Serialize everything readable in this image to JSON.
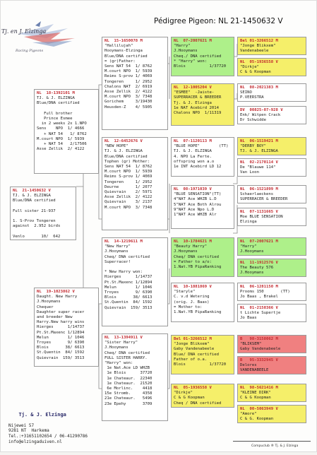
{
  "header": {
    "logo_text": "Tj. en J. Elzinga",
    "logo_sub": "Racing Pigeons",
    "title": "Pédigree Pigeon: NL  21-1450632 V"
  },
  "subject": {
    "ring": "NL  21-1450632 V",
    "body": "TJ. & J. ELZINGA\nBlue/DNA certified\n\nFull sister 21-937\n\n1. S-Prov Tongeren\nagainst  2.952 birds\n\nVenlo       10/  642"
  },
  "sire": {
    "ring": "NL  18-1392101 M",
    "body": "TJ. & J. ELZINGA\nBlue/DNA certified\n\n   Full brother\n   Prince Esmee\n  in 2 weeks 2x 1.NPO\nSens    NPO  1/ 4666\n   + NAT 54   1/ 8762\nM.court NPO  1/ 5939\n   + NAT 54   2/17506\nAsse Zellik  2/ 4122"
  },
  "dam": {
    "ring": "NL  19-1023862 V",
    "body": "Daught. New Harry\nJ.Hooymans\nChequer\nDaughter super racer\nand breeder New\nHarry.New harry wins\nHierges      1/14737\nPt.St.Maxenc 1/12894\nMelun        1/ 1046\nTroyes       9/ 6390\nBlois       38/ 6613\nSt.Quentin  84/ 1592\nQuievrain  159/ 3513"
  },
  "gen2": [
    {
      "ring": "NL  15-1650078 M",
      "body": "\"Hallilujah\"\nHooymans-Elzinga\nBlue/DNA certified\n= (gr)Father:\nSens NAT 54  1/ 8762\nM.court NPO  1/ 5939\nReims S-prov 1/ 4069\nTongeren     1/ 2952\nChalons NAT  2/ 6919\nAsse Zellik  2/ 4122\nM.court NPO  3/ 7348\nGorichem     3/19430\nHeusden-Z    4/ 5905"
    },
    {
      "ring": "NL  12-6452676 V",
      "body": "\"NEW HOPE\"\nTJ. & J. ELZINGA\nBlue/DNA certified\nTophen (gr) Mother:\nSens NAT 54  1/ 8762\nM.court NPO  1/ 5939\nReims S-prov 1/ 4069\nTongeren     1/ 2952\nDeurne       1/ 2077\nQuievrain    2/ 5971\nAsse Zellik  2/ 4122\nQuievrain    3/ 2137\nM.court NPO  3/ 7348"
    },
    {
      "ring": "NL  14-1219611 M",
      "body": "\"New Harry\"\nJ.Hooymans\nCheq/ DNA certified\nSuperracer!\n\n* New Harry won:\nHierges      1/14737\nPt.St.Maxenc 1/12894\nMelun        1/ 1046\nTroyes       9/ 6390\nBlois       38/ 6613\nSt.Quentin  84/ 1592\nQuievrain  159/ 3513"
    },
    {
      "ring": "NL  13-1394911 V",
      "body": "\"Sister Harry\"\nJ.Hooymans\nCheq/ DNA certified\nFULL SISTER HARRY.\n\"Harry\" won:\n 1e Nat.Ace LD WHZB\n 1e Blois      37720\n 1e Chateaur.  22340\n 1e Chateaur.  21520\n 6e Morlinc.    4418\n15e Stromb.     4358\n21e Chateaur.   5496\n23e Epehy       3709"
    }
  ],
  "gen3": [
    {
      "ring": "NL  07-2007621 M",
      "body": "\"Harry\"\nJ.Hooymans\nCheq./ DNA certified\n* \"Harry\" won:\nBlois          1/37720",
      "color": "green"
    },
    {
      "ring": "NL  12-1005204 V",
      "body": "\"ESMEE\"  -Jaiste-\nSUPERRACER & BREEDER\nTj. & J. Elzinga\n1e NAT Acebird 2014\nChalons NPO  1/11319",
      "color": "yellow"
    },
    {
      "ring": "NL  07-1120113 M",
      "body": "\"BLUE HOPE\"        (TT)\nTJ. & J. ELZINGA\n4. NPO La Ferte.\noffspring won a.o\n1e INT Acebird LD 12",
      "color": "white"
    },
    {
      "ring": "NL  08-1971039 V",
      "body": "\"BLUE SENSATION\"(TT)\n4\"NAT Ace WHZB L.D\n5\"NAT Ace Both Alrou\n9\"NAT Ace Npo L.D\n1\"NAT Ace WHZB Alr",
      "color": "white"
    },
    {
      "ring": "NL  10-1784621 M",
      "body": "\"Beauty Harry\"\nJ.Hooymans\nCheq/ DNA certified\n= Father to a/o:\n1.Nat.YB PipaRanking",
      "color": "green"
    },
    {
      "ring": "NL  10-1881869 V",
      "body": "\"Staryle\"\nC. v.d Wetering\n(orig. J. Baas)\n= Mother to:\n1.Nat.YB PipaRanking",
      "color": "white"
    },
    {
      "ring": "Bel 01-3266512 M",
      "body": "\"Jonge Blikxem\"\nGaby Vandenabeele\nBlue/ DNA certified\nFather of o.a.\nBlois          1/37720",
      "color": "yellow"
    },
    {
      "ring": "NL  05-1936558 V",
      "body": "\"Dirkje\"\nC & G Koopman\nCheq / DNA certified",
      "color": "yellow"
    }
  ],
  "gen4": [
    {
      "ring": "Bel 01-3266512 M",
      "body": "\"Jonge Blikxem\"\nVandenabeele",
      "color": "yellow"
    },
    {
      "ring": "NL  05-1936558 V",
      "body": "\"Dirkje\"\nC & G Koopman",
      "color": "yellow"
    },
    {
      "ring": "NL  08-2021383 M",
      "body": "SEINO\nP.VEERSTRA",
      "color": "white"
    },
    {
      "ring": "DV  00825-07-928 V",
      "body": "Enk/ Witpen Crack\nDr Schwidde",
      "color": "white"
    },
    {
      "ring": "NL  06-1519421 M",
      "body": "\"DERBY BOY\"\nTJ. & J. ELZINGA",
      "color": "yellow"
    },
    {
      "ring": "NL  02-2170114 V",
      "body": "De \"Blauwe 114\"\nVan Loon",
      "color": "white"
    },
    {
      "ring": "NL  06-1521899 M",
      "body": "Schaerlaeckens\nSUPERRACER & BREEDER",
      "color": "white"
    },
    {
      "ring": "NL  07-1131665 V",
      "body": "Moe BLUE SENSATION\nElzinga",
      "color": "white"
    },
    {
      "ring": "NL  07-2007621 M",
      "body": "\"Harry\"\nJ.Hooymans",
      "color": "green"
    },
    {
      "ring": "NL  11-1912576 V",
      "body": "The Beauty 576\nJ.Hooymans",
      "color": "green"
    },
    {
      "ring": "NL  06-1281150 M",
      "body": "Prooms 150       (TT)\nJo Baas , Brakel",
      "color": "white"
    },
    {
      "ring": "NL  01-2150366 V",
      "body": "t Lichte Supertje\nJo Baas",
      "color": "white"
    },
    {
      "ring": "B   98-3158062 M",
      "body": "\"BLIKSEM\"\nGaby Vandenabeele",
      "color": "red"
    },
    {
      "ring": "B   95-3332945 V",
      "body": "Delores\nVANDENABEELE",
      "color": "red"
    },
    {
      "ring": "NL  98-5621416 M",
      "body": "\"KLEINE DIRK\"\nC & G Koopman",
      "color": "yellow"
    },
    {
      "ring": "NL  00-5063949 V",
      "body": "\"Amore\"\nC & G. Koopman",
      "color": "yellow"
    }
  ],
  "owner": {
    "name": "Tj. & J. Elzinga",
    "address": "Nijewei 57\n9281 NT  Harkema\nTel.:+31651102654 / 06-41290786\ninfo@elzingaduiven.nl"
  },
  "footer": {
    "compiled": "Compuclub ® Tj. & J. Elzinga"
  },
  "colors": {
    "green": "#aef08a",
    "yellow": "#f5ef6a",
    "red": "#f08080",
    "ring_red": "#c2272d",
    "ring_blue": "#2b4ea0"
  }
}
